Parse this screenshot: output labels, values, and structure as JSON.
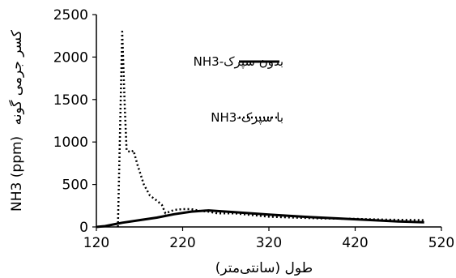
{
  "chart_data": {
    "type": "line",
    "title": "",
    "xlabel": "طول (سانتی‌متر)",
    "ylabel_latin": "NH3 (ppm)",
    "ylabel_persian": "کسر جرمی گونه",
    "xlim": [
      120,
      520
    ],
    "ylim": [
      0,
      2500
    ],
    "x_ticks": [
      120,
      220,
      320,
      420,
      520
    ],
    "y_ticks": [
      0,
      500,
      1000,
      1500,
      2000,
      2500
    ],
    "grid": false,
    "legend_position": "top-right",
    "series": [
      {
        "name": "NH3-بدون سپرک",
        "style": "solid",
        "color": "#000000",
        "points": [
          [
            120,
            0
          ],
          [
            130,
            10
          ],
          [
            140,
            30
          ],
          [
            150,
            50
          ],
          [
            170,
            80
          ],
          [
            190,
            110
          ],
          [
            210,
            150
          ],
          [
            230,
            180
          ],
          [
            250,
            195
          ],
          [
            280,
            175
          ],
          [
            320,
            145
          ],
          [
            360,
            120
          ],
          [
            400,
            100
          ],
          [
            440,
            80
          ],
          [
            470,
            65
          ],
          [
            500,
            55
          ]
        ]
      },
      {
        "name": "NH3-با سپرک",
        "style": "dotted",
        "color": "#000000",
        "points": [
          [
            145,
            0
          ],
          [
            150,
            2300
          ],
          [
            153,
            1400
          ],
          [
            155,
            900
          ],
          [
            160,
            880
          ],
          [
            163,
            900
          ],
          [
            168,
            720
          ],
          [
            175,
            500
          ],
          [
            182,
            370
          ],
          [
            190,
            310
          ],
          [
            196,
            260
          ],
          [
            200,
            160
          ],
          [
            210,
            200
          ],
          [
            220,
            210
          ],
          [
            230,
            210
          ],
          [
            240,
            190
          ],
          [
            250,
            180
          ],
          [
            260,
            160
          ],
          [
            280,
            160
          ],
          [
            300,
            140
          ],
          [
            320,
            120
          ],
          [
            350,
            110
          ],
          [
            380,
            100
          ],
          [
            420,
            95
          ],
          [
            460,
            85
          ],
          [
            500,
            80
          ]
        ]
      }
    ]
  }
}
